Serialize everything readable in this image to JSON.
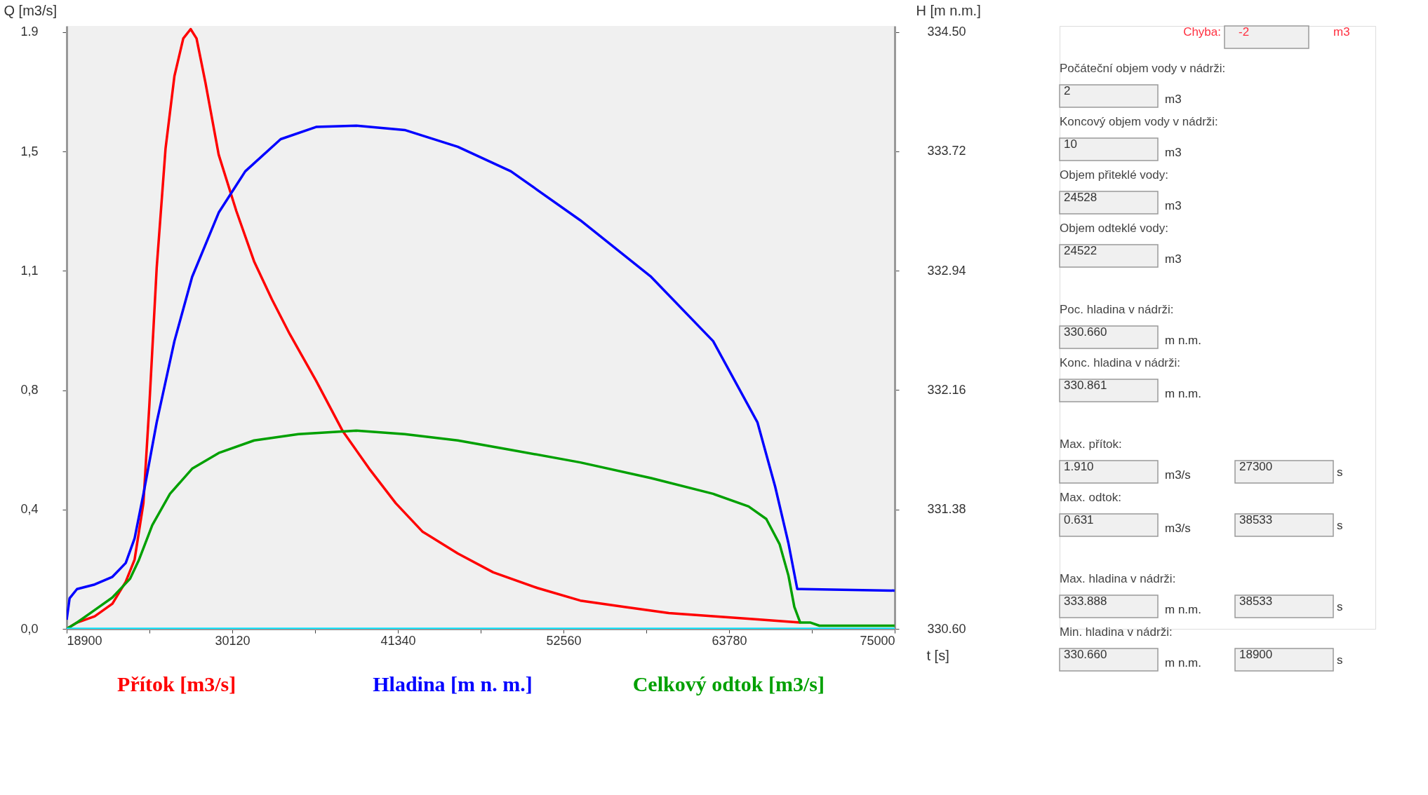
{
  "chart_data": [
    {
      "type": "line",
      "xlabel": "t [s]",
      "ylabel": "Q [m3/s]",
      "y2label": "H [m n.m.]",
      "xlim": [
        18900,
        75000
      ],
      "xticks": [
        18900,
        {
          "value": 24510,
          "label": null
        },
        30120,
        {
          "value": 35730,
          "label": null
        },
        41340,
        {
          "value": 46950,
          "label": null
        },
        52560,
        {
          "value": 58170,
          "label": null
        },
        63780,
        {
          "value": 69390,
          "label": null
        },
        75000
      ],
      "ylim": [
        0,
        1.92
      ],
      "yticks": [
        {
          "value": 0,
          "label": "0,0"
        },
        {
          "value": 0.38,
          "label": "0,4"
        },
        {
          "value": 0.76,
          "label": "0,8"
        },
        {
          "value": 1.14,
          "label": "1,1"
        },
        {
          "value": 1.52,
          "label": "1,5"
        },
        {
          "value": 1.9,
          "label": "1.9"
        }
      ],
      "y2lim": [
        330.6,
        334.54
      ],
      "y2ticks": [
        {
          "value": 330.6,
          "label": "330.60"
        },
        331.38,
        332.16,
        332.94,
        333.72,
        {
          "value": 334.5,
          "label": "334.50"
        }
      ],
      "grid": false,
      "legend": "bottom",
      "marker": "none",
      "line_style": "solid",
      "series": [
        {
          "name": "Přítok [m3/s]",
          "color": "#ff0000",
          "x": [
            18900,
            19600,
            20800,
            22000,
            22900,
            23500,
            24100,
            24500,
            25000,
            25600,
            26200,
            26800,
            27300,
            27700,
            28300,
            29200,
            30400,
            31600,
            32800,
            34000,
            35800,
            37600,
            39400,
            41200,
            43000,
            45400,
            47800,
            50800,
            53700,
            56700,
            59700,
            62700,
            65700,
            68600
          ],
          "values": [
            0,
            0.02,
            0.04,
            0.08,
            0.15,
            0.22,
            0.4,
            0.71,
            1.15,
            1.53,
            1.76,
            1.88,
            1.91,
            1.88,
            1.74,
            1.51,
            1.33,
            1.17,
            1.05,
            0.94,
            0.79,
            0.63,
            0.51,
            0.4,
            0.31,
            0.24,
            0.18,
            0.13,
            0.09,
            0.07,
            0.05,
            0.04,
            0.03,
            0.02
          ]
        },
        {
          "name": "Hladina [m n. m.]",
          "color": "#0000ff",
          "axis": "y2",
          "x": [
            18900,
            19100,
            19600,
            20800,
            22000,
            22900,
            23500,
            24100,
            25000,
            26200,
            27400,
            29200,
            31000,
            33400,
            35800,
            38533,
            41800,
            45400,
            49000,
            53700,
            58500,
            62700,
            65700,
            66900,
            67800,
            68400,
            68700,
            75000
          ],
          "values": [
            330.66,
            330.8,
            330.86,
            330.89,
            330.94,
            331.03,
            331.19,
            331.48,
            331.95,
            332.48,
            332.9,
            333.32,
            333.59,
            333.8,
            333.88,
            333.888,
            333.86,
            333.75,
            333.59,
            333.27,
            332.9,
            332.48,
            331.95,
            331.53,
            331.16,
            330.86,
            330.86,
            330.85
          ]
        },
        {
          "name": "Celkový odtok [m3/s]",
          "color": "#00a000",
          "x": [
            18900,
            19600,
            20800,
            22000,
            23200,
            23800,
            24700,
            25900,
            27400,
            29200,
            31600,
            34600,
            38533,
            41800,
            45400,
            49000,
            53700,
            58500,
            62700,
            65100,
            66300,
            67200,
            67800,
            68200,
            68600,
            69300,
            69900,
            74100,
            75000
          ],
          "values": [
            0,
            0.02,
            0.06,
            0.1,
            0.16,
            0.22,
            0.33,
            0.43,
            0.51,
            0.56,
            0.6,
            0.62,
            0.631,
            0.62,
            0.6,
            0.57,
            0.53,
            0.48,
            0.43,
            0.39,
            0.35,
            0.27,
            0.17,
            0.07,
            0.02,
            0.02,
            0.01,
            0.01,
            0.01
          ]
        },
        {
          "color": "#00e5ff",
          "x": [
            18900,
            75000
          ],
          "values": [
            0,
            0
          ]
        }
      ]
    },
    {
      "type": "other",
      "annotations": [
        "Chyba:",
        "-2",
        "m3",
        "Počáteční objem vody v nádrži:",
        "2",
        "m3",
        "Koncový objem vody v nádrži:",
        "10",
        "m3",
        "Objem přiteklé vody:",
        "24528",
        "m3",
        "Objem odteklé vody:",
        "24522",
        "m3",
        "Poc. hladina v nádrži:",
        "330.660",
        "m n.m.",
        "Konc. hladina v nádrži:",
        "330.861",
        "m n.m.",
        "Max. přítok:",
        "1.910",
        "m3/s",
        "27300",
        "s",
        "Max. odtok:",
        "0.631",
        "m3/s",
        "38533",
        "s",
        "Max. hladina v nádrži:",
        "333.888",
        "m n.m.",
        "38533",
        "s",
        "Min. hladina v nádrži:",
        "330.660",
        "m n.m.",
        "18900",
        "s"
      ]
    }
  ]
}
